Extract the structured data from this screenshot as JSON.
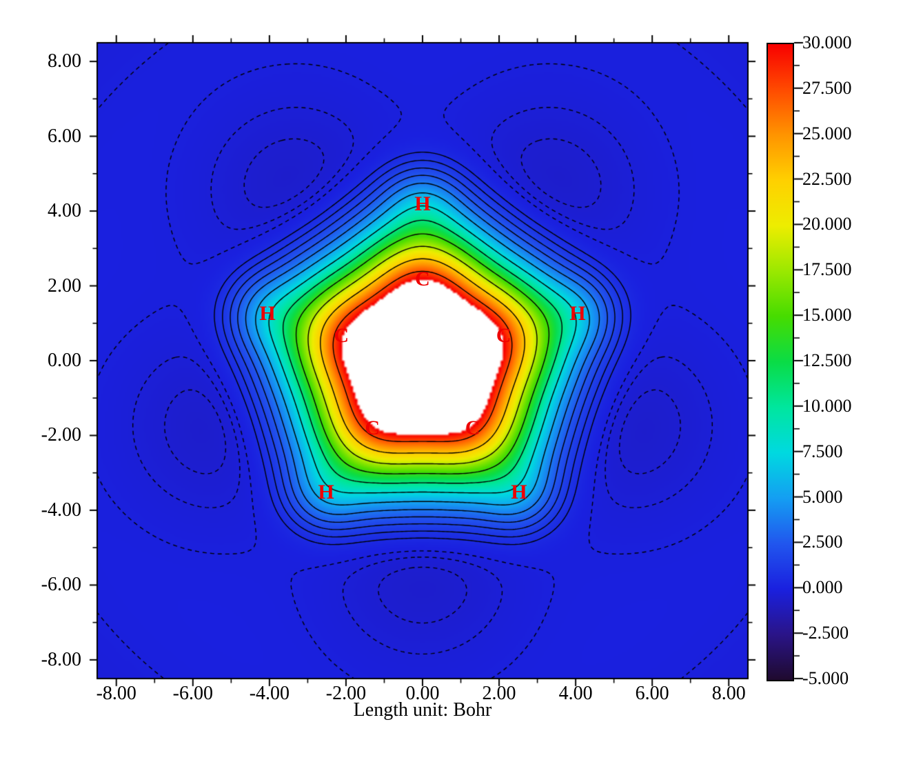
{
  "chart_data": {
    "type": "filled_contour",
    "title": "",
    "xlabel": "Length unit: Bohr",
    "grid": false,
    "axis": {
      "x_min": -8.5,
      "x_max": 8.5,
      "y_min": -8.5,
      "y_max": 8.5,
      "minor_step": 1,
      "x_major_ticks": [
        {
          "v": -8,
          "label": "-8.00"
        },
        {
          "v": -6,
          "label": "-6.00"
        },
        {
          "v": -4,
          "label": "-4.00"
        },
        {
          "v": -2,
          "label": "-2.00"
        },
        {
          "v": 0,
          "label": "0.00"
        },
        {
          "v": 2,
          "label": "2.00"
        },
        {
          "v": 4,
          "label": "4.00"
        },
        {
          "v": 6,
          "label": "6.00"
        },
        {
          "v": 8,
          "label": "8.00"
        }
      ],
      "y_major_ticks": [
        {
          "v": -8,
          "label": "-8.00"
        },
        {
          "v": -6,
          "label": "-6.00"
        },
        {
          "v": -4,
          "label": "-4.00"
        },
        {
          "v": -2,
          "label": "-2.00"
        },
        {
          "v": 0,
          "label": "0.00"
        },
        {
          "v": 2,
          "label": "2.00"
        },
        {
          "v": 4,
          "label": "4.00"
        },
        {
          "v": 6,
          "label": "6.00"
        },
        {
          "v": 8,
          "label": "8.00"
        }
      ]
    },
    "colorbar": {
      "min": -5,
      "max": 30,
      "major_step": 2.5,
      "minor_step": 1.25,
      "over_max_color": "#ffffff",
      "labels": [
        {
          "v": 30,
          "label": "30.000"
        },
        {
          "v": 27.5,
          "label": "27.500"
        },
        {
          "v": 25,
          "label": "25.000"
        },
        {
          "v": 22.5,
          "label": "22.500"
        },
        {
          "v": 20,
          "label": "20.000"
        },
        {
          "v": 17.5,
          "label": "17.500"
        },
        {
          "v": 15,
          "label": "15.000"
        },
        {
          "v": 12.5,
          "label": "12.500"
        },
        {
          "v": 10,
          "label": "10.000"
        },
        {
          "v": 7.5,
          "label": "7.500"
        },
        {
          "v": 5,
          "label": "5.000"
        },
        {
          "v": 2.5,
          "label": "2.500"
        },
        {
          "v": 0,
          "label": "0.000"
        },
        {
          "v": -2.5,
          "label": "-2.500"
        },
        {
          "v": -5,
          "label": "-5.000"
        }
      ],
      "stops": [
        {
          "v": -5.0,
          "c": "#1F0A2E"
        },
        {
          "v": -2.5,
          "c": "#2A1488"
        },
        {
          "v": 0.0,
          "c": "#1A20DF"
        },
        {
          "v": 2.5,
          "c": "#2156EE"
        },
        {
          "v": 5.0,
          "c": "#149EF2"
        },
        {
          "v": 7.5,
          "c": "#00D9E0"
        },
        {
          "v": 10.0,
          "c": "#00E69E"
        },
        {
          "v": 12.5,
          "c": "#0ADC46"
        },
        {
          "v": 15.0,
          "c": "#46DC00"
        },
        {
          "v": 17.5,
          "c": "#9BE800"
        },
        {
          "v": 20.0,
          "c": "#EDED00"
        },
        {
          "v": 22.5,
          "c": "#FFD000"
        },
        {
          "v": 25.0,
          "c": "#FF9400"
        },
        {
          "v": 27.5,
          "c": "#FF4A00"
        },
        {
          "v": 30.0,
          "c": "#F80000"
        }
      ]
    },
    "atoms": [
      {
        "el": "H",
        "x": 0.0,
        "y": 4.18
      },
      {
        "el": "C",
        "x": 0.0,
        "y": 2.18
      },
      {
        "el": "H",
        "x": -4.05,
        "y": 1.25
      },
      {
        "el": "H",
        "x": 4.05,
        "y": 1.25
      },
      {
        "el": "C",
        "x": -2.12,
        "y": 0.67
      },
      {
        "el": "C",
        "x": 2.12,
        "y": 0.67
      },
      {
        "el": "C",
        "x": -1.31,
        "y": -1.81
      },
      {
        "el": "C",
        "x": 1.31,
        "y": -1.81
      },
      {
        "el": "H",
        "x": -2.52,
        "y": -3.52
      },
      {
        "el": "H",
        "x": 2.52,
        "y": -3.52
      }
    ],
    "atom_label_color": "#ee0000",
    "contours": {
      "solid_levels": [
        0.5,
        1.0,
        1.7,
        2.6,
        3.8,
        5.5,
        8.0,
        11.0,
        14.5,
        18.5,
        23.0,
        27.5
      ],
      "dashed_levels": [
        -0.08,
        -0.25,
        -0.42
      ],
      "line_color": "#000000"
    },
    "field_model": {
      "center": {
        "A": 25,
        "s": 2.35
      },
      "carbon": {
        "A": 17,
        "s": 1.6
      },
      "hydrogen": {
        "A": 3.2,
        "s": 0.95
      },
      "dips": {
        "A": -0.6,
        "s": 2.4,
        "r": 5.6,
        "angles_deg": [
          54,
          126,
          198,
          270,
          342
        ]
      },
      "edge": {
        "A": -0.25,
        "r_start": 8.6,
        "r_scale": 4
      }
    }
  }
}
